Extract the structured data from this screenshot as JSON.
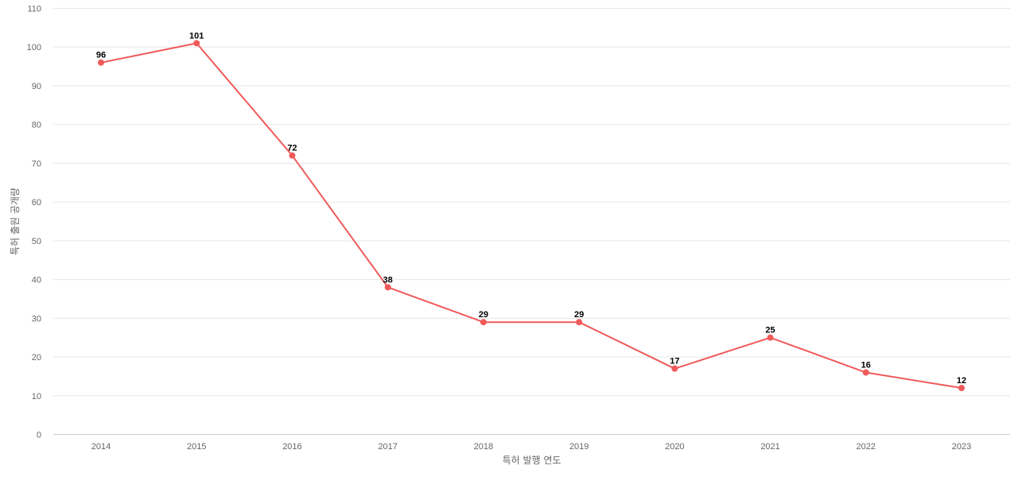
{
  "chart_data": {
    "type": "line",
    "x": [
      "2014",
      "2015",
      "2016",
      "2017",
      "2018",
      "2019",
      "2020",
      "2021",
      "2022",
      "2023"
    ],
    "series": [
      {
        "values": [
          96,
          101,
          72,
          38,
          29,
          29,
          17,
          25,
          16,
          12
        ],
        "color": "#f05a5a"
      }
    ],
    "xlabel": "특허 발행 연도",
    "ylabel": "특허 출원 공개량",
    "ylim": [
      0,
      110
    ],
    "yticks": [
      0,
      10,
      20,
      30,
      40,
      50,
      60,
      70,
      80,
      90,
      100,
      110
    ],
    "grid": true,
    "data_labels": true
  }
}
